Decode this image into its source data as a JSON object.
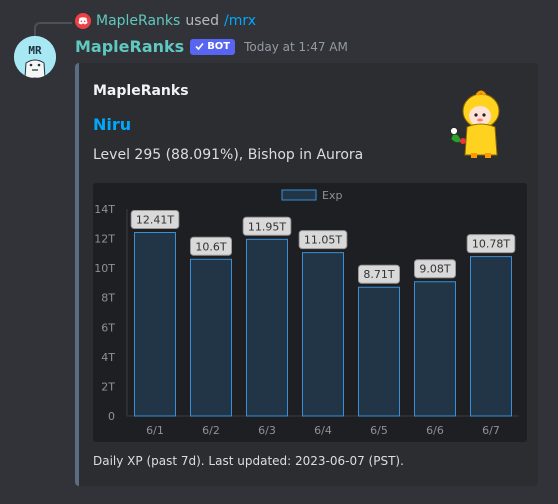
{
  "reply": {
    "bot_name": "MapleRanks",
    "used_text": "used",
    "command": "/mrx"
  },
  "message": {
    "username": "MapleRanks",
    "bot_badge": "BOT",
    "timestamp": "Today at 1:47 AM",
    "avatar_text": "MR",
    "username_color": "#5fc9c0"
  },
  "embed": {
    "accent_color": "#5a6d82",
    "author": "MapleRanks",
    "title": "Niru",
    "description": "Level 295 (88.091%), Bishop in Aurora",
    "footer": "Daily XP (past 7d). Last updated: 2023-06-07 (PST)."
  },
  "chart_data": {
    "type": "bar",
    "categories": [
      "6/1",
      "6/2",
      "6/3",
      "6/4",
      "6/5",
      "6/6",
      "6/7"
    ],
    "series": [
      {
        "name": "Exp",
        "values": [
          12.41,
          10.6,
          11.95,
          11.05,
          8.71,
          9.08,
          10.78
        ]
      }
    ],
    "data_labels": [
      "12.41T",
      "10.6T",
      "11.95T",
      "11.05T",
      "8.71T",
      "9.08T",
      "10.78T"
    ],
    "y_ticks": [
      "0",
      "2T",
      "4T",
      "6T",
      "8T",
      "10T",
      "12T",
      "14T"
    ],
    "ylim": [
      0,
      14
    ],
    "legend_position": "top",
    "grid": false,
    "bar_fill": "#213547",
    "bar_stroke": "#3b8fd4",
    "label_bg": "#d9d9d9"
  }
}
